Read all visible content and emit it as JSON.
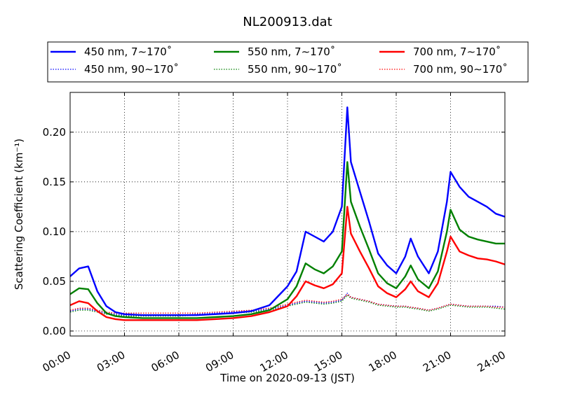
{
  "chart_data": {
    "type": "line",
    "title": "NL200913.dat",
    "xlabel": "Time on 2020-09-13 (JST)",
    "ylabel": "Scattering Coefficient (km⁻¹)",
    "xlim": [
      "00:00",
      "24:00"
    ],
    "ylim": [
      -0.005,
      0.24
    ],
    "grid": true,
    "legend_position": "top, above plot",
    "x_ticks": [
      "00:00",
      "03:00",
      "06:00",
      "09:00",
      "12:00",
      "15:00",
      "18:00",
      "21:00",
      "24:00"
    ],
    "y_ticks": [
      "0.00",
      "0.05",
      "0.10",
      "0.15",
      "0.20"
    ],
    "x_hours": [
      0,
      0.5,
      1,
      1.5,
      2,
      2.5,
      3,
      4,
      5,
      6,
      7,
      8,
      9,
      10,
      11,
      12,
      12.5,
      13,
      13.5,
      14,
      14.5,
      15,
      15.3,
      15.5,
      16,
      16.5,
      17,
      17.5,
      18,
      18.5,
      18.8,
      19.2,
      19.8,
      20.3,
      20.8,
      21,
      21.5,
      22,
      22.5,
      23,
      23.5,
      24
    ],
    "series": [
      {
        "name": "450 nm, 7∼170˚",
        "style": "solid",
        "color": "#0000ff",
        "values": [
          0.055,
          0.063,
          0.065,
          0.04,
          0.025,
          0.019,
          0.017,
          0.016,
          0.016,
          0.016,
          0.016,
          0.017,
          0.018,
          0.02,
          0.026,
          0.045,
          0.06,
          0.1,
          0.095,
          0.09,
          0.1,
          0.125,
          0.225,
          0.17,
          0.14,
          0.11,
          0.078,
          0.066,
          0.058,
          0.075,
          0.093,
          0.075,
          0.058,
          0.08,
          0.13,
          0.16,
          0.145,
          0.135,
          0.13,
          0.125,
          0.118,
          0.115
        ]
      },
      {
        "name": "550 nm, 7∼170˚",
        "style": "solid",
        "color": "#008000",
        "values": [
          0.037,
          0.043,
          0.042,
          0.028,
          0.018,
          0.015,
          0.014,
          0.013,
          0.013,
          0.013,
          0.013,
          0.014,
          0.015,
          0.017,
          0.021,
          0.032,
          0.045,
          0.068,
          0.062,
          0.058,
          0.065,
          0.08,
          0.17,
          0.13,
          0.105,
          0.082,
          0.058,
          0.048,
          0.043,
          0.055,
          0.066,
          0.052,
          0.043,
          0.06,
          0.1,
          0.122,
          0.102,
          0.095,
          0.092,
          0.09,
          0.088,
          0.088
        ]
      },
      {
        "name": "700 nm, 7∼170˚",
        "style": "solid",
        "color": "#ff0000",
        "values": [
          0.026,
          0.03,
          0.028,
          0.02,
          0.014,
          0.012,
          0.011,
          0.011,
          0.011,
          0.011,
          0.011,
          0.012,
          0.013,
          0.015,
          0.019,
          0.025,
          0.035,
          0.05,
          0.046,
          0.043,
          0.047,
          0.058,
          0.125,
          0.098,
          0.08,
          0.063,
          0.045,
          0.038,
          0.034,
          0.042,
          0.05,
          0.04,
          0.034,
          0.048,
          0.08,
          0.095,
          0.08,
          0.076,
          0.073,
          0.072,
          0.07,
          0.067
        ]
      },
      {
        "name": "450 nm, 90∼170˚",
        "style": "dotted",
        "color": "#0000ff",
        "values": [
          0.02,
          0.022,
          0.022,
          0.02,
          0.018,
          0.017,
          0.016,
          0.016,
          0.016,
          0.016,
          0.017,
          0.018,
          0.019,
          0.02,
          0.022,
          0.026,
          0.028,
          0.03,
          0.029,
          0.028,
          0.029,
          0.031,
          0.038,
          0.034,
          0.032,
          0.03,
          0.027,
          0.026,
          0.025,
          0.025,
          0.024,
          0.023,
          0.021,
          0.023,
          0.026,
          0.027,
          0.026,
          0.025,
          0.025,
          0.025,
          0.025,
          0.024
        ]
      },
      {
        "name": "550 nm, 90∼170˚",
        "style": "dotted",
        "color": "#008000",
        "values": [
          0.019,
          0.021,
          0.021,
          0.019,
          0.017,
          0.016,
          0.015,
          0.015,
          0.015,
          0.015,
          0.016,
          0.017,
          0.018,
          0.019,
          0.021,
          0.025,
          0.027,
          0.029,
          0.028,
          0.027,
          0.028,
          0.03,
          0.036,
          0.033,
          0.031,
          0.029,
          0.026,
          0.025,
          0.024,
          0.024,
          0.023,
          0.022,
          0.02,
          0.022,
          0.025,
          0.026,
          0.025,
          0.024,
          0.024,
          0.024,
          0.023,
          0.022
        ]
      },
      {
        "name": "700 nm, 90∼170˚",
        "style": "dotted",
        "color": "#ff0000",
        "values": [
          0.021,
          0.023,
          0.023,
          0.021,
          0.019,
          0.018,
          0.018,
          0.018,
          0.018,
          0.018,
          0.018,
          0.019,
          0.02,
          0.021,
          0.023,
          0.027,
          0.029,
          0.031,
          0.03,
          0.029,
          0.03,
          0.032,
          0.037,
          0.034,
          0.032,
          0.03,
          0.027,
          0.026,
          0.025,
          0.025,
          0.024,
          0.023,
          0.021,
          0.023,
          0.026,
          0.027,
          0.026,
          0.025,
          0.025,
          0.025,
          0.024,
          0.024
        ]
      }
    ]
  }
}
